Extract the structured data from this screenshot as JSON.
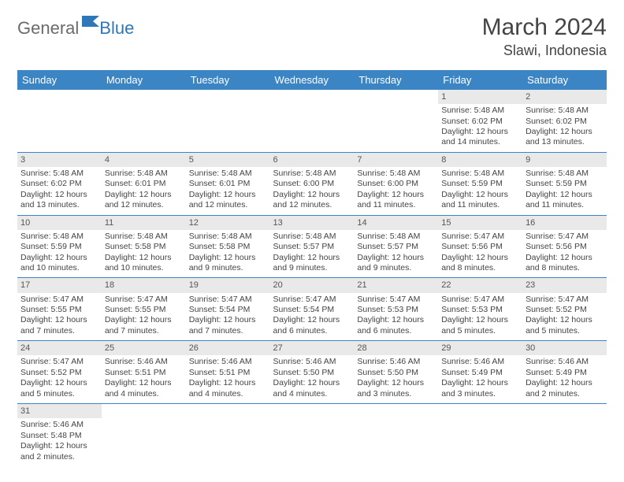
{
  "logo": {
    "text1": "General",
    "text2": "Blue"
  },
  "title": "March 2024",
  "location": "Slawi, Indonesia",
  "colors": {
    "header_bg": "#3b85c4",
    "header_fg": "#ffffff",
    "daynum_bg": "#e9e9e9",
    "row_divider": "#3b85c4",
    "text": "#444444",
    "logo_gray": "#6b6b6b",
    "logo_blue": "#2e77b8",
    "background": "#ffffff"
  },
  "typography": {
    "title_fontsize": 30,
    "location_fontsize": 18,
    "dayhead_fontsize": 13,
    "cell_fontsize": 10.5,
    "daynum_fontsize": 11
  },
  "dayNames": [
    "Sunday",
    "Monday",
    "Tuesday",
    "Wednesday",
    "Thursday",
    "Friday",
    "Saturday"
  ],
  "weeks": [
    [
      null,
      null,
      null,
      null,
      null,
      {
        "n": "1",
        "sr": "5:48 AM",
        "ss": "6:02 PM",
        "dl": "12 hours and 14 minutes."
      },
      {
        "n": "2",
        "sr": "5:48 AM",
        "ss": "6:02 PM",
        "dl": "12 hours and 13 minutes."
      }
    ],
    [
      {
        "n": "3",
        "sr": "5:48 AM",
        "ss": "6:02 PM",
        "dl": "12 hours and 13 minutes."
      },
      {
        "n": "4",
        "sr": "5:48 AM",
        "ss": "6:01 PM",
        "dl": "12 hours and 12 minutes."
      },
      {
        "n": "5",
        "sr": "5:48 AM",
        "ss": "6:01 PM",
        "dl": "12 hours and 12 minutes."
      },
      {
        "n": "6",
        "sr": "5:48 AM",
        "ss": "6:00 PM",
        "dl": "12 hours and 12 minutes."
      },
      {
        "n": "7",
        "sr": "5:48 AM",
        "ss": "6:00 PM",
        "dl": "12 hours and 11 minutes."
      },
      {
        "n": "8",
        "sr": "5:48 AM",
        "ss": "5:59 PM",
        "dl": "12 hours and 11 minutes."
      },
      {
        "n": "9",
        "sr": "5:48 AM",
        "ss": "5:59 PM",
        "dl": "12 hours and 11 minutes."
      }
    ],
    [
      {
        "n": "10",
        "sr": "5:48 AM",
        "ss": "5:59 PM",
        "dl": "12 hours and 10 minutes."
      },
      {
        "n": "11",
        "sr": "5:48 AM",
        "ss": "5:58 PM",
        "dl": "12 hours and 10 minutes."
      },
      {
        "n": "12",
        "sr": "5:48 AM",
        "ss": "5:58 PM",
        "dl": "12 hours and 9 minutes."
      },
      {
        "n": "13",
        "sr": "5:48 AM",
        "ss": "5:57 PM",
        "dl": "12 hours and 9 minutes."
      },
      {
        "n": "14",
        "sr": "5:48 AM",
        "ss": "5:57 PM",
        "dl": "12 hours and 9 minutes."
      },
      {
        "n": "15",
        "sr": "5:47 AM",
        "ss": "5:56 PM",
        "dl": "12 hours and 8 minutes."
      },
      {
        "n": "16",
        "sr": "5:47 AM",
        "ss": "5:56 PM",
        "dl": "12 hours and 8 minutes."
      }
    ],
    [
      {
        "n": "17",
        "sr": "5:47 AM",
        "ss": "5:55 PM",
        "dl": "12 hours and 7 minutes."
      },
      {
        "n": "18",
        "sr": "5:47 AM",
        "ss": "5:55 PM",
        "dl": "12 hours and 7 minutes."
      },
      {
        "n": "19",
        "sr": "5:47 AM",
        "ss": "5:54 PM",
        "dl": "12 hours and 7 minutes."
      },
      {
        "n": "20",
        "sr": "5:47 AM",
        "ss": "5:54 PM",
        "dl": "12 hours and 6 minutes."
      },
      {
        "n": "21",
        "sr": "5:47 AM",
        "ss": "5:53 PM",
        "dl": "12 hours and 6 minutes."
      },
      {
        "n": "22",
        "sr": "5:47 AM",
        "ss": "5:53 PM",
        "dl": "12 hours and 5 minutes."
      },
      {
        "n": "23",
        "sr": "5:47 AM",
        "ss": "5:52 PM",
        "dl": "12 hours and 5 minutes."
      }
    ],
    [
      {
        "n": "24",
        "sr": "5:47 AM",
        "ss": "5:52 PM",
        "dl": "12 hours and 5 minutes."
      },
      {
        "n": "25",
        "sr": "5:46 AM",
        "ss": "5:51 PM",
        "dl": "12 hours and 4 minutes."
      },
      {
        "n": "26",
        "sr": "5:46 AM",
        "ss": "5:51 PM",
        "dl": "12 hours and 4 minutes."
      },
      {
        "n": "27",
        "sr": "5:46 AM",
        "ss": "5:50 PM",
        "dl": "12 hours and 4 minutes."
      },
      {
        "n": "28",
        "sr": "5:46 AM",
        "ss": "5:50 PM",
        "dl": "12 hours and 3 minutes."
      },
      {
        "n": "29",
        "sr": "5:46 AM",
        "ss": "5:49 PM",
        "dl": "12 hours and 3 minutes."
      },
      {
        "n": "30",
        "sr": "5:46 AM",
        "ss": "5:49 PM",
        "dl": "12 hours and 2 minutes."
      }
    ],
    [
      {
        "n": "31",
        "sr": "5:46 AM",
        "ss": "5:48 PM",
        "dl": "12 hours and 2 minutes."
      },
      null,
      null,
      null,
      null,
      null,
      null
    ]
  ],
  "labels": {
    "sunrise": "Sunrise:",
    "sunset": "Sunset:",
    "daylight": "Daylight:"
  }
}
